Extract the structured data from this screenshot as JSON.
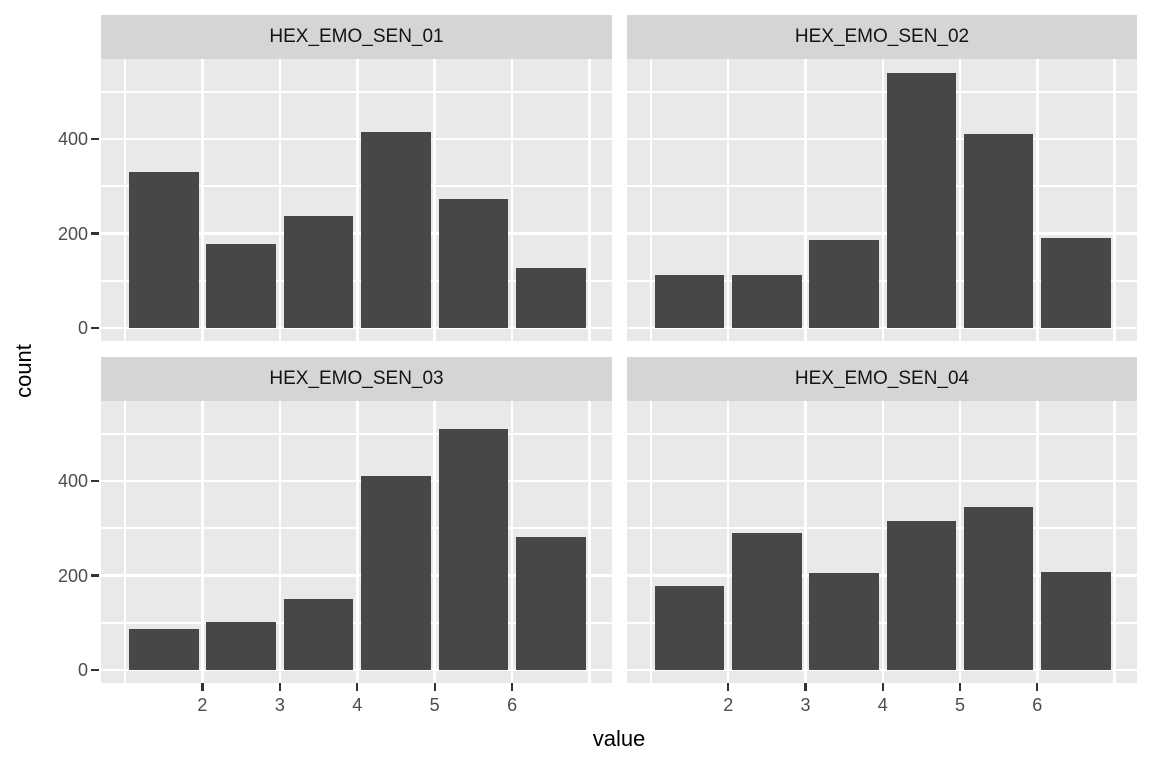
{
  "chart_data": {
    "type": "bar",
    "subtype": "faceted-histogram",
    "facets": [
      {
        "label": "HEX_EMO_SEN_01",
        "values": [
          330,
          178,
          237,
          414,
          273,
          127
        ]
      },
      {
        "label": "HEX_EMO_SEN_02",
        "values": [
          113,
          113,
          187,
          540,
          410,
          190
        ]
      },
      {
        "label": "HEX_EMO_SEN_03",
        "values": [
          87,
          102,
          151,
          411,
          510,
          281
        ]
      },
      {
        "label": "HEX_EMO_SEN_04",
        "values": [
          178,
          291,
          205,
          316,
          346,
          207
        ]
      }
    ],
    "bin_centers": [
      1.5,
      2.5,
      3.5,
      4.5,
      5.5,
      6.5
    ],
    "bar_width_units": 0.9,
    "xlabel": "value",
    "ylabel": "count",
    "x_ticks": [
      "2",
      "3",
      "4",
      "5",
      "6"
    ],
    "x_tick_values": [
      2,
      3,
      4,
      5,
      6
    ],
    "x_gridline_values": [
      1,
      2,
      3,
      4,
      5,
      6,
      7
    ],
    "y_ticks": [
      "0",
      "200",
      "400"
    ],
    "y_tick_values": [
      0,
      200,
      400
    ],
    "y_minor_values": [
      100,
      300,
      500
    ],
    "x_range": [
      0.69,
      7.29
    ],
    "y_range": [
      -27,
      569
    ],
    "grid": true,
    "legend": "none",
    "colors": {
      "bar": "#474747",
      "panel_bg": "#E9E9E9",
      "strip_bg": "#D5D5D5",
      "grid": "#FFFFFF",
      "axis_text": "#4D4D4D",
      "strip_text": "#141414",
      "tick_mark": "#333333"
    }
  }
}
